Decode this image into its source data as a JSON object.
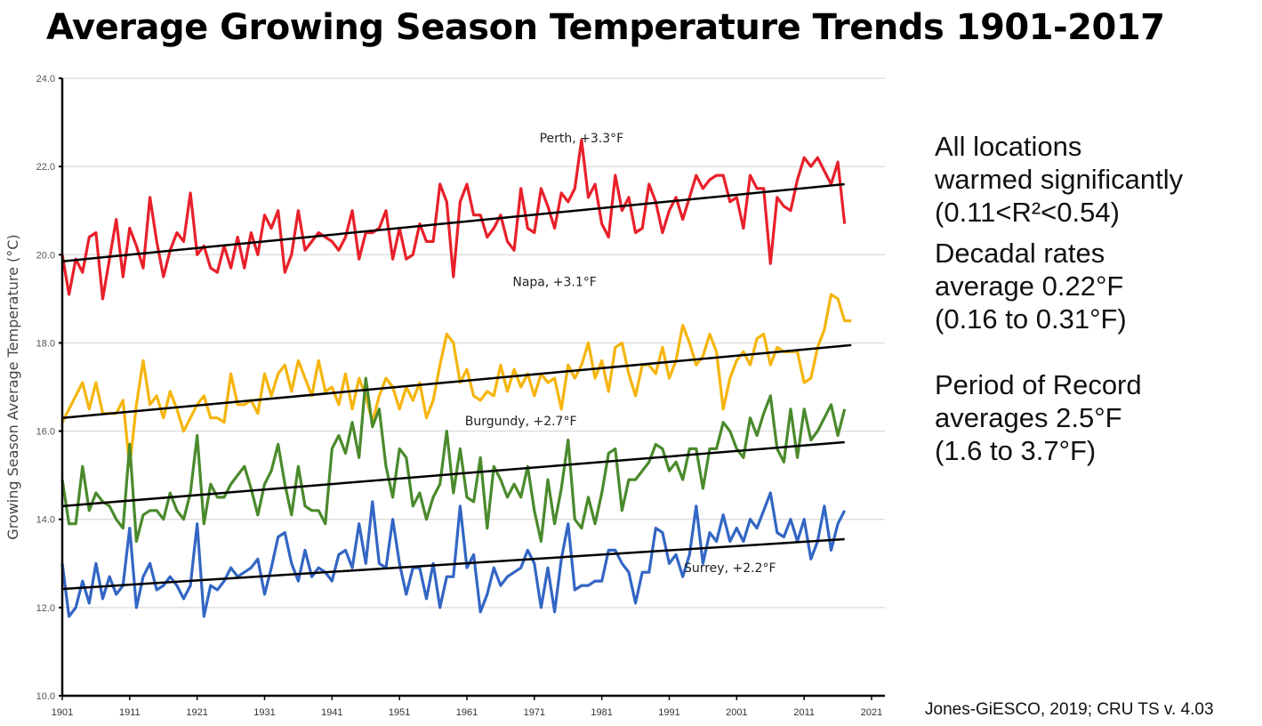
{
  "title": "Average Growing Season Temperature Trends 1901-2017",
  "side_notes": [
    {
      "lines": [
        "All locations",
        "warmed significantly",
        "(0.11<R²<0.54)"
      ]
    },
    {
      "lines": [
        "Decadal rates",
        "average 0.22°F",
        "(0.16 to 0.31°F)"
      ]
    },
    {
      "lines": [
        "Period of Record",
        "averages 2.5°F",
        "(1.6 to 3.7°F)"
      ]
    }
  ],
  "credit": "Jones-GiESCO, 2019; CRU TS v. 4.03",
  "chart_data": {
    "type": "line",
    "title": "Average Growing Season Temperature Trends 1901-2017",
    "xlabel": "",
    "ylabel": "Growing Season Average Temperature (°C)",
    "xlim": [
      1901,
      2021
    ],
    "ylim": [
      10.0,
      24.0
    ],
    "xticks": [
      1901,
      1911,
      1921,
      1931,
      1941,
      1951,
      1961,
      1971,
      1981,
      1991,
      2001,
      2011,
      2021
    ],
    "yticks": [
      "10.0",
      "12.0",
      "14.0",
      "16.0",
      "18.0",
      "20.0",
      "22.0",
      "24.0"
    ],
    "grid": true,
    "x_start": 1901,
    "series": [
      {
        "name": "Perth",
        "label": "Perth, +3.3°F",
        "color": "#e8202a",
        "trend": [
          19.85,
          21.6
        ],
        "values": [
          20.0,
          19.1,
          19.9,
          19.6,
          20.4,
          20.5,
          19.0,
          19.9,
          20.8,
          19.5,
          20.6,
          20.2,
          19.7,
          21.3,
          20.3,
          19.5,
          20.1,
          20.5,
          20.3,
          21.4,
          20.0,
          20.2,
          19.7,
          19.6,
          20.2,
          19.7,
          20.4,
          19.7,
          20.5,
          20.0,
          20.9,
          20.6,
          21.0,
          19.6,
          20.0,
          21.0,
          20.1,
          20.3,
          20.5,
          20.4,
          20.3,
          20.1,
          20.4,
          21.0,
          19.9,
          20.5,
          20.5,
          20.6,
          21.0,
          19.9,
          20.6,
          19.9,
          20.0,
          20.7,
          20.3,
          20.3,
          21.6,
          21.2,
          19.5,
          21.2,
          21.6,
          20.9,
          20.9,
          20.4,
          20.6,
          20.9,
          20.3,
          20.1,
          21.5,
          20.6,
          20.5,
          21.5,
          21.1,
          20.6,
          21.4,
          21.2,
          21.5,
          22.6,
          21.3,
          21.6,
          20.7,
          20.4,
          21.8,
          21.0,
          21.3,
          20.5,
          20.6,
          21.6,
          21.2,
          20.5,
          21.0,
          21.3,
          20.8,
          21.3,
          21.8,
          21.5,
          21.7,
          21.8,
          21.8,
          21.2,
          21.3,
          20.6,
          21.8,
          21.5,
          21.5,
          19.8,
          21.3,
          21.1,
          21.0,
          21.7,
          22.2,
          22.0,
          22.2,
          21.9,
          21.6,
          22.1,
          20.7
        ]
      },
      {
        "name": "Napa",
        "label": "Napa, +3.1°F",
        "color": "#f5b50e",
        "trend": [
          16.3,
          17.95
        ],
        "values": [
          16.2,
          16.5,
          16.8,
          17.1,
          16.5,
          17.1,
          16.4,
          16.4,
          16.4,
          16.7,
          15.2,
          16.6,
          17.6,
          16.6,
          16.8,
          16.3,
          16.9,
          16.5,
          16.0,
          16.3,
          16.6,
          16.8,
          16.3,
          16.3,
          16.2,
          17.3,
          16.6,
          16.6,
          16.7,
          16.4,
          17.3,
          16.8,
          17.3,
          17.5,
          16.9,
          17.6,
          17.2,
          16.8,
          17.6,
          16.9,
          17.0,
          16.6,
          17.3,
          16.5,
          17.2,
          16.8,
          16.2,
          16.8,
          17.2,
          17.0,
          16.5,
          17.0,
          16.7,
          17.1,
          16.3,
          16.7,
          17.5,
          18.2,
          18.0,
          17.1,
          17.4,
          16.8,
          16.7,
          16.9,
          16.8,
          17.5,
          16.9,
          17.4,
          17.0,
          17.3,
          16.8,
          17.3,
          17.1,
          17.2,
          16.5,
          17.5,
          17.2,
          17.5,
          18.0,
          17.2,
          17.6,
          16.9,
          17.9,
          18.0,
          17.3,
          16.8,
          17.5,
          17.5,
          17.3,
          17.9,
          17.2,
          17.6,
          18.4,
          18.0,
          17.5,
          17.7,
          18.2,
          17.8,
          16.5,
          17.2,
          17.6,
          17.8,
          17.5,
          18.1,
          18.2,
          17.5,
          17.9,
          17.8,
          17.8,
          17.8,
          17.1,
          17.2,
          17.9,
          18.3,
          19.1,
          19.0,
          18.5,
          18.5
        ]
      },
      {
        "name": "Burgundy",
        "label": "Burgundy, +2.7°F",
        "color": "#4a8a2c",
        "trend": [
          14.3,
          15.75
        ],
        "values": [
          14.9,
          13.9,
          13.9,
          15.2,
          14.2,
          14.6,
          14.4,
          14.3,
          14.0,
          13.8,
          15.7,
          13.5,
          14.1,
          14.2,
          14.2,
          14.0,
          14.6,
          14.2,
          14.0,
          14.6,
          15.9,
          13.9,
          14.8,
          14.5,
          14.5,
          14.8,
          15.0,
          15.2,
          14.7,
          14.1,
          14.8,
          15.1,
          15.7,
          14.8,
          14.1,
          15.2,
          14.3,
          14.2,
          14.2,
          13.9,
          15.6,
          15.9,
          15.5,
          16.2,
          15.4,
          17.2,
          16.1,
          16.5,
          15.2,
          14.5,
          15.6,
          15.4,
          14.3,
          14.6,
          14.0,
          14.5,
          14.8,
          16.0,
          14.6,
          15.6,
          14.5,
          14.4,
          15.4,
          13.8,
          15.2,
          14.9,
          14.5,
          14.8,
          14.5,
          15.2,
          14.2,
          13.5,
          14.9,
          13.9,
          14.7,
          15.8,
          14.0,
          13.8,
          14.5,
          13.9,
          14.6,
          15.5,
          15.6,
          14.2,
          14.9,
          14.9,
          15.1,
          15.3,
          15.7,
          15.6,
          15.1,
          15.3,
          14.9,
          15.6,
          15.6,
          14.7,
          15.6,
          15.6,
          16.2,
          16.0,
          15.6,
          15.4,
          16.3,
          15.9,
          16.4,
          16.8,
          15.6,
          15.3,
          16.5,
          15.4,
          16.5,
          15.8,
          16.0,
          16.3,
          16.6,
          15.9,
          16.5
        ]
      },
      {
        "name": "Surrey",
        "label": "Surrey, +2.2°F",
        "color": "#3366c4",
        "trend": [
          12.42,
          13.55
        ],
        "values": [
          13.0,
          11.8,
          12.0,
          12.6,
          12.1,
          13.0,
          12.2,
          12.7,
          12.3,
          12.5,
          13.8,
          12.0,
          12.7,
          13.0,
          12.4,
          12.5,
          12.7,
          12.5,
          12.2,
          12.5,
          13.9,
          11.8,
          12.5,
          12.4,
          12.6,
          12.9,
          12.7,
          12.8,
          12.9,
          13.1,
          12.3,
          12.9,
          13.6,
          13.7,
          13.0,
          12.6,
          13.3,
          12.7,
          12.9,
          12.8,
          12.6,
          13.2,
          13.3,
          12.9,
          13.9,
          13.0,
          14.4,
          13.0,
          12.9,
          14.0,
          13.0,
          12.3,
          12.9,
          12.9,
          12.2,
          13.0,
          12.0,
          12.7,
          12.7,
          14.3,
          12.9,
          13.2,
          11.9,
          12.3,
          12.9,
          12.5,
          12.7,
          12.8,
          12.9,
          13.3,
          13.0,
          12.0,
          12.9,
          11.9,
          13.1,
          13.9,
          12.4,
          12.5,
          12.5,
          12.6,
          12.6,
          13.3,
          13.3,
          13.0,
          12.8,
          12.1,
          12.8,
          12.8,
          13.8,
          13.7,
          13.0,
          13.2,
          12.7,
          13.2,
          14.3,
          13.0,
          13.7,
          13.5,
          14.1,
          13.5,
          13.8,
          13.5,
          14.0,
          13.8,
          14.2,
          14.6,
          13.7,
          13.6,
          14.0,
          13.5,
          14.0,
          13.1,
          13.5,
          14.3,
          13.3,
          13.9,
          14.2
        ]
      }
    ]
  }
}
